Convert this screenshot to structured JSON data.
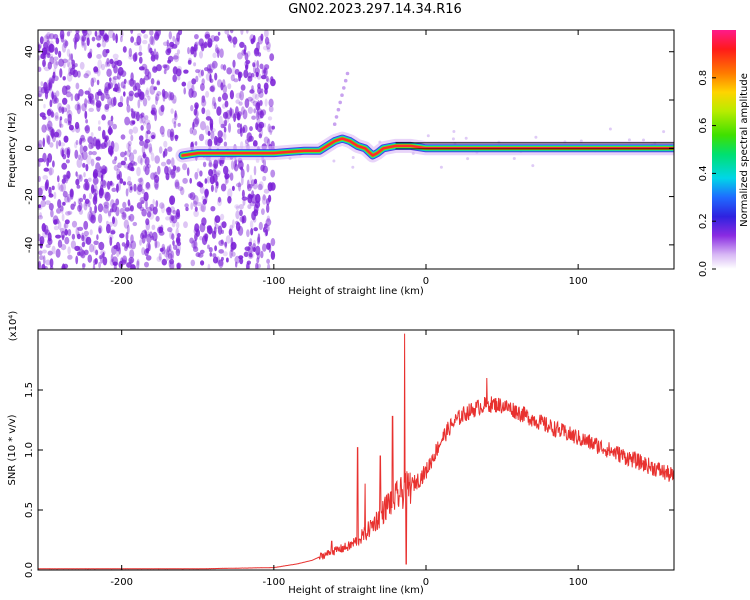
{
  "title": "GN02.2023.297.14.34.R16",
  "colors": {
    "line": "#e8312f",
    "ridge": "#000000",
    "noise": "#7a1fd6"
  },
  "chart_data": [
    {
      "type": "heatmap",
      "xlabel": "Height of straight line (km)",
      "ylabel": "Frequency (Hz)",
      "xlim": [
        -255,
        163
      ],
      "ylim": [
        -50,
        49
      ],
      "xticks": [
        -200,
        -100,
        0,
        100
      ],
      "yticks": [
        -40,
        -20,
        0,
        20,
        40
      ],
      "colorbar": {
        "label": "Normalized spectral amplitude",
        "range": [
          0,
          1
        ],
        "ticks": [
          0.0,
          0.2,
          0.4,
          0.6,
          0.8
        ]
      },
      "ridge": {
        "note": "",
        "x": [
          -160,
          -150,
          -125,
          -115,
          -100,
          -90,
          -80,
          -70,
          -65,
          -60,
          -55,
          -50,
          -45,
          -40,
          -35,
          -32,
          -28,
          -20,
          -10,
          0,
          50,
          100,
          163
        ],
        "y": [
          -3,
          -2,
          -2,
          -2,
          -2,
          -1.5,
          -1,
          -1,
          1,
          3,
          4,
          3,
          1,
          0,
          -3,
          -2,
          0,
          1,
          1,
          0,
          0,
          0,
          0
        ]
      }
    },
    {
      "type": "line",
      "xlabel": "Height of straight line (km)",
      "ylabel": "SNR (10 * v/v)",
      "y_multiplier": "(x10⁴)",
      "xlim": [
        -255,
        163
      ],
      "ylim": [
        0,
        2.0
      ],
      "xticks": [
        -200,
        -100,
        0,
        100
      ],
      "yticks": [
        0.0,
        0.5,
        1.0,
        1.5
      ],
      "ytick_labels": [
        "0.0",
        "0.5",
        "1.0",
        "1.5"
      ],
      "envelope": {
        "x": [
          -255,
          -200,
          -150,
          -100,
          -85,
          -75,
          -68,
          -62,
          -55,
          -50,
          -45,
          -40,
          -35,
          -30,
          -25,
          -20,
          -15,
          -10,
          -5,
          0,
          5,
          10,
          15,
          20,
          25,
          30,
          35,
          40,
          45,
          50,
          55,
          60,
          70,
          80,
          90,
          100,
          110,
          120,
          130,
          140,
          150,
          163
        ],
        "y": [
          0.01,
          0.01,
          0.01,
          0.02,
          0.05,
          0.08,
          0.12,
          0.15,
          0.18,
          0.2,
          0.25,
          0.3,
          0.38,
          0.45,
          0.55,
          0.6,
          0.65,
          0.7,
          0.75,
          0.82,
          0.95,
          1.08,
          1.18,
          1.25,
          1.3,
          1.33,
          1.36,
          1.38,
          1.38,
          1.37,
          1.35,
          1.32,
          1.26,
          1.2,
          1.15,
          1.1,
          1.05,
          1.0,
          0.95,
          0.9,
          0.85,
          0.78
        ]
      },
      "spikes": [
        {
          "x": -62,
          "y": 0.24
        },
        {
          "x": -45,
          "y": 1.02
        },
        {
          "x": -40,
          "y": 0.72
        },
        {
          "x": -30,
          "y": 0.95
        },
        {
          "x": -22,
          "y": 1.28
        },
        {
          "x": -14,
          "y": 1.97
        },
        {
          "x": -13,
          "y": 0.05
        },
        {
          "x": 40,
          "y": 1.6
        }
      ]
    }
  ]
}
